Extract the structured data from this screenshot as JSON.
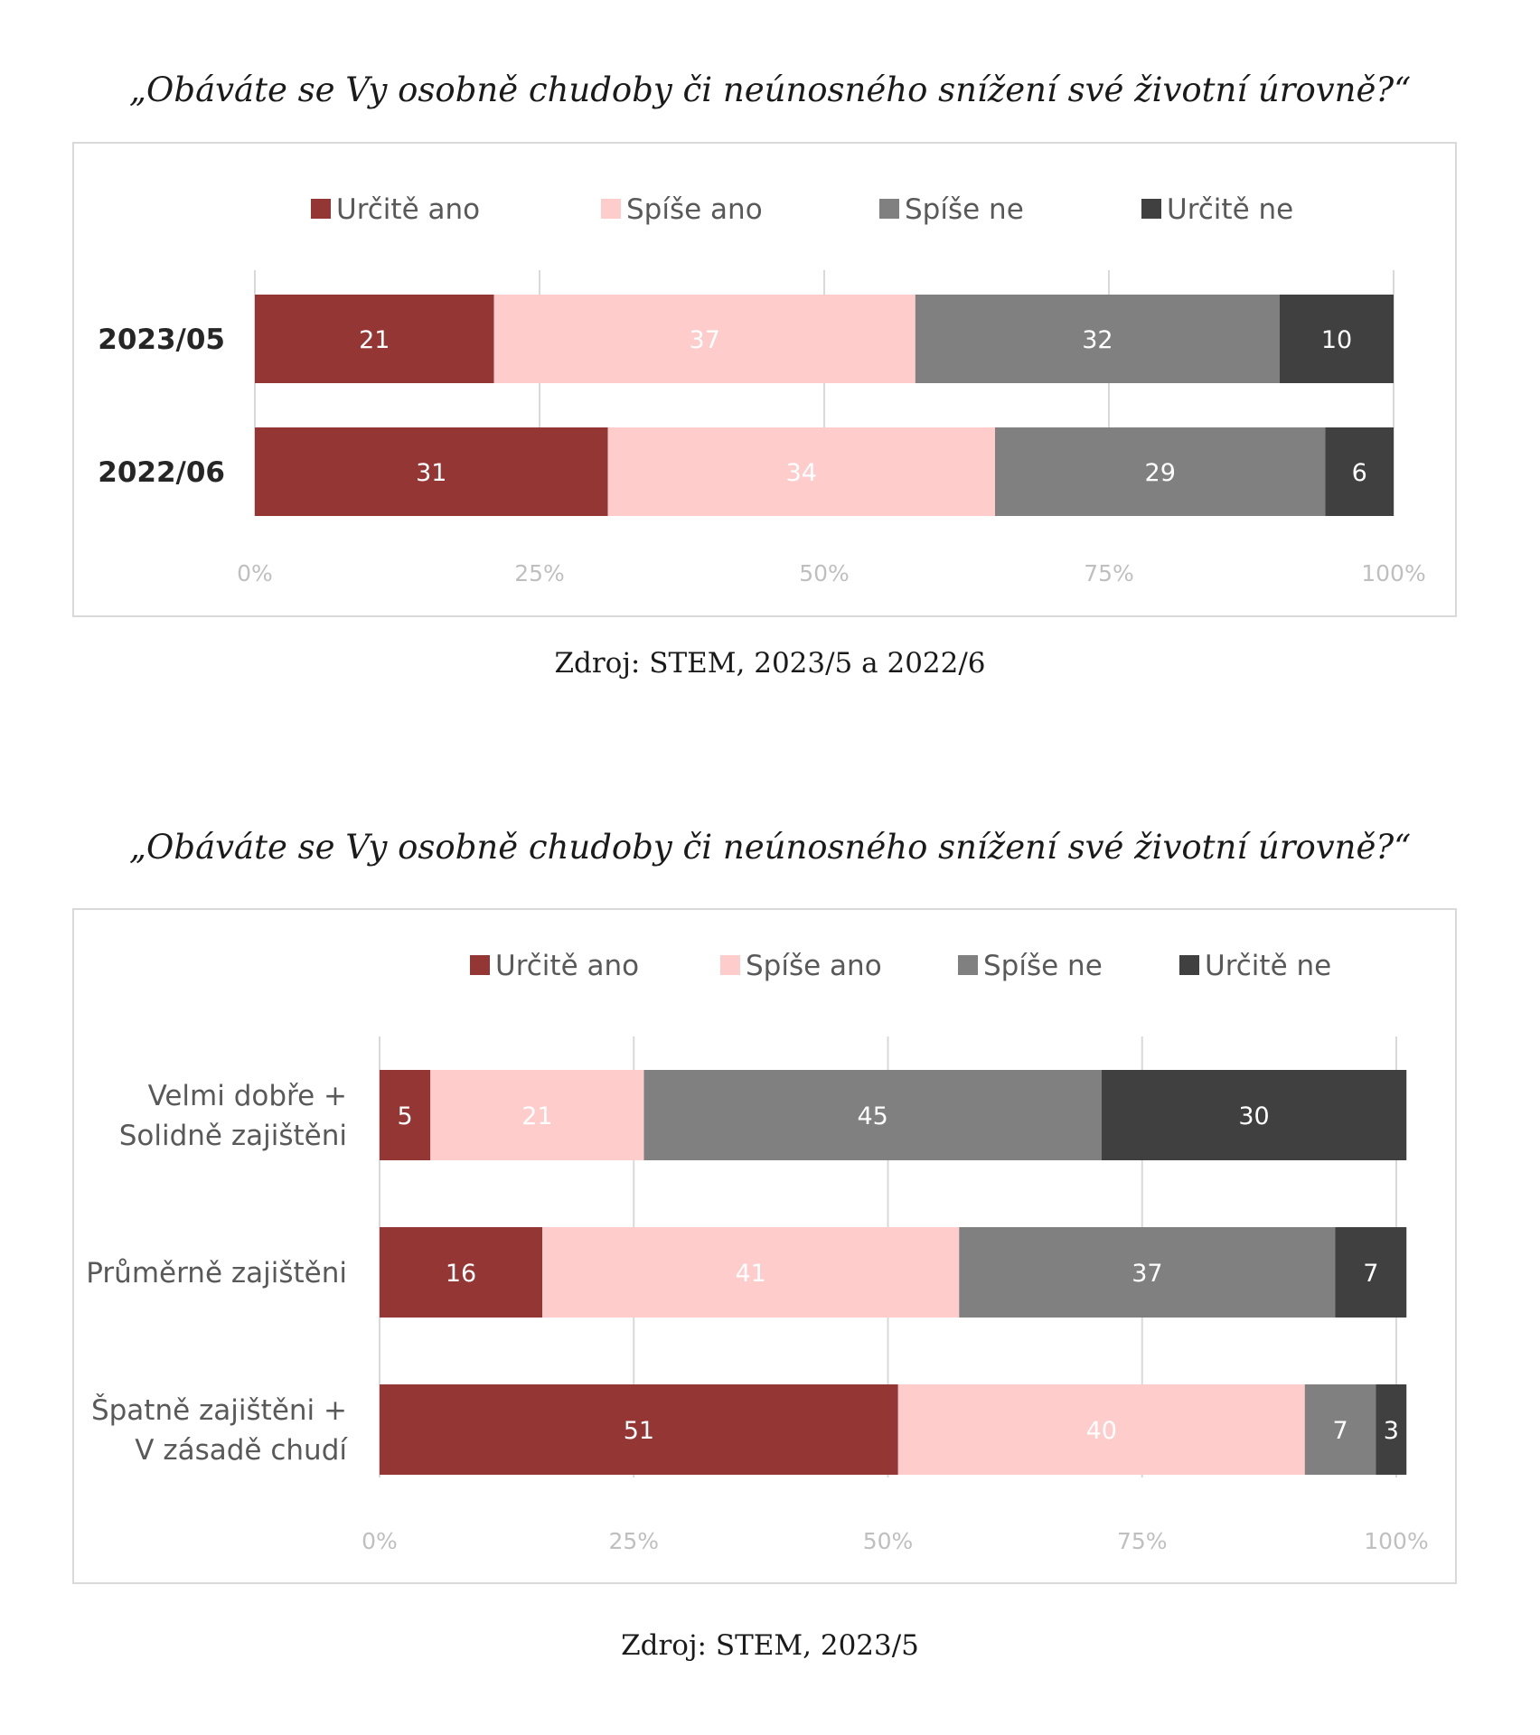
{
  "colors": {
    "Určitě ano": "#943634",
    "Spíše ano": "#ffcccc",
    "Spíše ne": "#808080",
    "Určitě ne": "#404040",
    "gridline": "#d9d9d9",
    "tick": "#bfbfbf"
  },
  "sections": [
    {
      "title": "„Obáváte se Vy osobně chudoby či neúnosného snížení své životní úrovně?“",
      "source": "Zdroj: STEM, 2023/5 a 2022/6"
    },
    {
      "title": "„Obáváte se Vy osobně chudoby či neúnosného snížení své životní úrovně?“",
      "source": "Zdroj: STEM, 2023/5"
    }
  ],
  "chart_data": [
    {
      "type": "bar",
      "orientation": "horizontal",
      "stacked": true,
      "categories": [
        "2023/05",
        "2022/06"
      ],
      "series": [
        {
          "name": "Určitě ano",
          "values": [
            21,
            31
          ]
        },
        {
          "name": "Spíše ano",
          "values": [
            37,
            34
          ]
        },
        {
          "name": "Spíše ne",
          "values": [
            32,
            29
          ]
        },
        {
          "name": "Určitě ne",
          "values": [
            10,
            6
          ]
        }
      ],
      "xticks": [
        "0%",
        "25%",
        "50%",
        "75%",
        "100%"
      ],
      "xlim": [
        0,
        100
      ],
      "legend": "top",
      "grid": true
    },
    {
      "type": "bar",
      "orientation": "horizontal",
      "stacked": true,
      "categories": [
        [
          "Velmi dobře +",
          "Solidně zajištěni"
        ],
        [
          "Průměrně zajištěni"
        ],
        [
          "Špatně zajištěni +",
          "V zásadě chudí"
        ]
      ],
      "series": [
        {
          "name": "Určitě ano",
          "values": [
            5,
            16,
            51
          ]
        },
        {
          "name": "Spíše ano",
          "values": [
            21,
            41,
            40
          ]
        },
        {
          "name": "Spíše ne",
          "values": [
            45,
            37,
            7
          ]
        },
        {
          "name": "Určitě ne",
          "values": [
            30,
            7,
            3
          ]
        }
      ],
      "xticks": [
        "0%",
        "25%",
        "50%",
        "75%",
        "100%"
      ],
      "xlim": [
        0,
        100
      ],
      "legend": "top",
      "grid": true
    }
  ]
}
